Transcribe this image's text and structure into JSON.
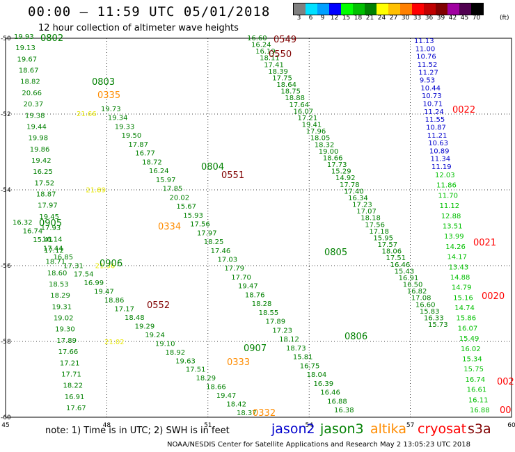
{
  "title": "00:00 – 11:59 UTC 05/01/2018",
  "subtitle": "12 hour collection of altimeter wave heights",
  "colorbar": {
    "labels": [
      "3",
      "6",
      "9",
      "12",
      "15",
      "18",
      "21",
      "24",
      "27",
      "30",
      "33",
      "36",
      "39",
      "42",
      "45",
      "70"
    ],
    "unit": "(ft)",
    "colors": [
      "#808080",
      "#00e0ff",
      "#00a0ff",
      "#0000ff",
      "#00ff00",
      "#00c000",
      "#008000",
      "#ffff00",
      "#ffc000",
      "#ff8000",
      "#ff0000",
      "#c00000",
      "#800000",
      "#a000a0",
      "#500050",
      "#000000"
    ]
  },
  "note": "note:  1) Time is in UTC;  2) SWH is in feet",
  "legend": [
    {
      "label": "jason2",
      "color": "#0000cc"
    },
    {
      "label": "jason3",
      "color": "#008000"
    },
    {
      "label": "altika",
      "color": "#ff8c00"
    },
    {
      "label": "cryosat",
      "color": "#ff0000"
    },
    {
      "label": "s3a",
      "color": "#800000"
    }
  ],
  "footer": "NOAA/NESDIS Center for Satellite Applications and Research    May  2 13:05:23 UTC 2018",
  "axes": {
    "x_ticks": [
      "45",
      "48",
      "51",
      "54",
      "57",
      "60"
    ],
    "y_ticks": [
      "-50",
      "-52",
      "-54",
      "-56",
      "-58",
      "-60"
    ]
  },
  "time_labels": [
    {
      "text": "0549",
      "color": "#800000"
    },
    {
      "text": "0550",
      "color": "#800000"
    },
    {
      "text": "0551",
      "color": "#800000"
    },
    {
      "text": "0552",
      "color": "#800000"
    },
    {
      "text": "0802",
      "color": "#008000"
    },
    {
      "text": "0803",
      "color": "#008000"
    },
    {
      "text": "0804",
      "color": "#008000"
    },
    {
      "text": "0805",
      "color": "#008000"
    },
    {
      "text": "0806",
      "color": "#008000"
    },
    {
      "text": "0905",
      "color": "#008000"
    },
    {
      "text": "0906",
      "color": "#008000"
    },
    {
      "text": "0907",
      "color": "#008000"
    },
    {
      "text": "0335",
      "color": "#ff8c00"
    },
    {
      "text": "0334",
      "color": "#ff8c00"
    },
    {
      "text": "0333",
      "color": "#ff8c00"
    },
    {
      "text": "0332",
      "color": "#ff8c00"
    },
    {
      "text": "0022",
      "color": "#ff0000"
    },
    {
      "text": "0021",
      "color": "#ff0000"
    },
    {
      "text": "0020",
      "color": "#ff0000"
    },
    {
      "text": "002",
      "color": "#ff0000"
    },
    {
      "text": "00",
      "color": "#ff0000"
    }
  ],
  "tracks": {
    "jason2_blue": [
      "11.13",
      "11.00",
      "10.76",
      "11.52",
      "11.27",
      "9.53",
      "10.44",
      "10.73",
      "10.71",
      "11.24",
      "11.55",
      "10.87",
      "11.21",
      "10.63",
      "10.89",
      "11.34",
      "11.19"
    ],
    "jason2_lower": [
      "12.03",
      "11.86",
      "11.70",
      "11.12",
      "12.88",
      "13.51",
      "13.99",
      "14.26",
      "14.17",
      "13.43",
      "14.88",
      "14.79",
      "15.16",
      "14.74",
      "15.86",
      "16.07",
      "15.49",
      "16.02",
      "15.34",
      "15.75",
      "16.74",
      "16.61",
      "16.11",
      "16.88"
    ],
    "s3a_track": [
      "16.60",
      "16.24",
      "16.19",
      "18.11",
      "17.41",
      "18.39",
      "17.75",
      "18.64",
      "18.75",
      "18.88",
      "17.64",
      "16.07",
      "17.21",
      "19.41",
      "17.96",
      "18.05",
      "18.32",
      "19.00",
      "18.66",
      "17.73",
      "15.29",
      "14.92",
      "17.78",
      "17.40",
      "16.34",
      "17.23",
      "17.07",
      "18.18",
      "17.56",
      "17.18",
      "15.95",
      "17.57",
      "18.06",
      "17.51",
      "16.46",
      "15.43",
      "16.91",
      "16.50",
      "16.82",
      "17.08",
      "16.60",
      "15.83",
      "16.33",
      "15.73"
    ],
    "jason3_a": [
      "19.93",
      "19.13",
      "19.67",
      "18.67",
      "18.82",
      "20.66",
      "20.37",
      "19.38",
      "19.44",
      "19.98",
      "19.86",
      "19.42",
      "16.25",
      "17.52",
      "18.87",
      "17.97",
      "19.45",
      "17.93",
      "16.14",
      "17.12",
      "18.71",
      "18.60",
      "18.53",
      "18.29",
      "19.31",
      "19.02",
      "19.30",
      "17.89",
      "17.66",
      "17.21",
      "17.71",
      "18.22",
      "16.91",
      "17.67"
    ],
    "jason3_b": [
      "16.32",
      "16.74",
      "15.41",
      "17.44",
      "16.85",
      "17.31",
      "17.54",
      "16.99",
      "19.47",
      "18.86",
      "17.17",
      "18.48",
      "19.29",
      "19.24",
      "19.10",
      "18.92",
      "19.63",
      "17.51",
      "18.29",
      "18.66",
      "19.47",
      "18.42",
      "18.37"
    ],
    "jason3_c": [
      "19.73",
      "19.34",
      "19.33",
      "19.50",
      "17.87",
      "16.77",
      "18.72",
      "16.24",
      "15.97",
      "17.85",
      "20.02",
      "15.67",
      "15.93",
      "17.56",
      "17.97",
      "18.25",
      "17.46",
      "17.03",
      "17.79",
      "17.70",
      "19.47",
      "18.76",
      "18.28",
      "18.55",
      "17.89",
      "17.23",
      "18.12",
      "18.73",
      "15.81",
      "16.75",
      "18.04",
      "16.39",
      "16.46",
      "16.88",
      "16.38"
    ],
    "altika": [
      "21.66",
      "21.89",
      "21.36",
      "21.02"
    ]
  }
}
